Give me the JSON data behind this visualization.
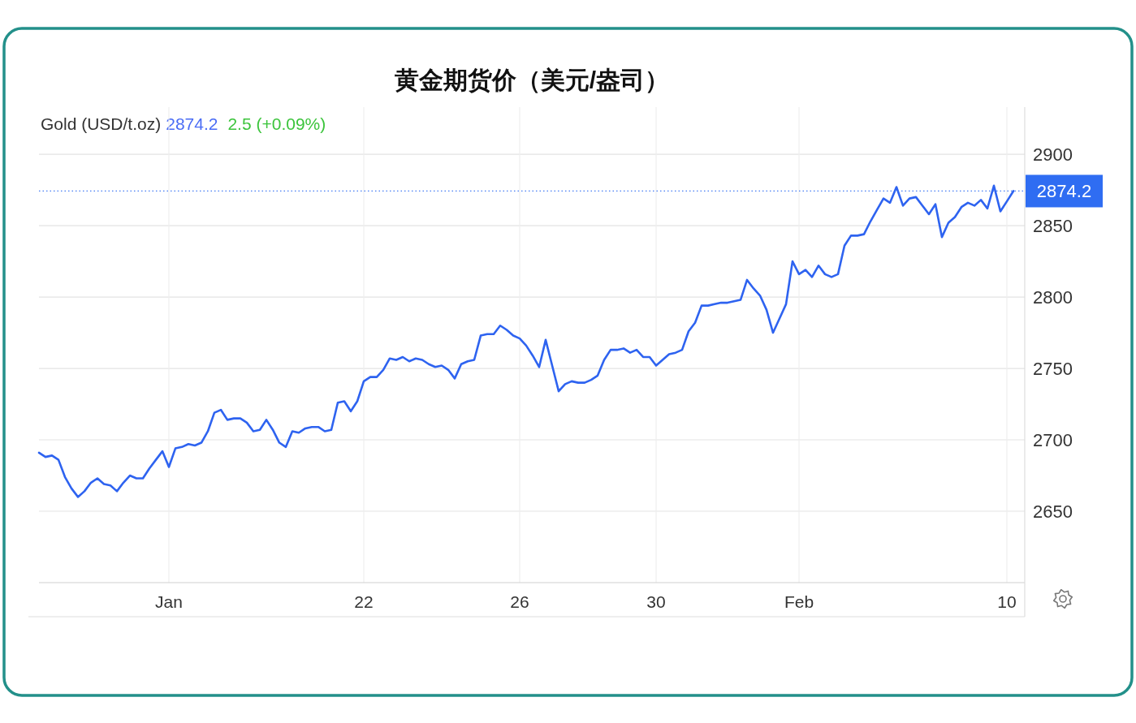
{
  "chart_data": {
    "type": "line",
    "title": "黄金期货价（美元/盎司）",
    "subtitle": "Gold (USD/t.oz)",
    "annotations": [
      "2874.2",
      "2.5 (+0.09%)"
    ],
    "categories": [
      null,
      null,
      null,
      null,
      null,
      null,
      null,
      null,
      null,
      null,
      null,
      null,
      null,
      null,
      null,
      null,
      null,
      null,
      null,
      null,
      "Jan",
      null,
      null,
      null,
      null,
      null,
      null,
      null,
      null,
      null,
      null,
      null,
      null,
      null,
      null,
      null,
      null,
      null,
      null,
      null,
      null,
      null,
      null,
      null,
      null,
      null,
      null,
      null,
      null,
      null,
      "22",
      null,
      null,
      null,
      null,
      null,
      null,
      null,
      null,
      null,
      null,
      null,
      null,
      null,
      null,
      null,
      null,
      null,
      null,
      null,
      null,
      null,
      null,
      null,
      "26",
      null,
      null,
      null,
      null,
      null,
      null,
      null,
      null,
      null,
      null,
      null,
      null,
      null,
      null,
      null,
      null,
      null,
      null,
      null,
      null,
      "30",
      null,
      null,
      null,
      null,
      null,
      null,
      null,
      null,
      null,
      null,
      null,
      null,
      null,
      null,
      null,
      null,
      null,
      null,
      null,
      null,
      null,
      "Feb",
      null,
      null,
      null,
      null,
      null,
      null,
      null,
      null,
      null,
      null,
      null,
      null,
      null,
      null,
      null,
      null,
      null,
      null,
      null,
      null,
      null,
      null,
      null,
      null,
      null,
      null,
      null,
      null,
      null,
      null,
      null,
      "10",
      null
    ],
    "values": [
      2691,
      2688,
      2689,
      2686,
      2674,
      2666,
      2660,
      2664,
      2670,
      2673,
      2669,
      2668,
      2664,
      2670,
      2675,
      2673,
      2673,
      2680,
      2686,
      2692,
      2681,
      2694,
      2695,
      2697,
      2696,
      2698,
      2706,
      2719,
      2721,
      2714,
      2715,
      2715,
      2712,
      2706,
      2707,
      2714,
      2707,
      2698,
      2695,
      2706,
      2705,
      2708,
      2709,
      2709,
      2706,
      2707,
      2726,
      2727,
      2720,
      2727,
      2741,
      2744,
      2744,
      2749,
      2757,
      2756,
      2758,
      2755,
      2757,
      2756,
      2753,
      2751,
      2752,
      2749,
      2743,
      2753,
      2755,
      2756,
      2773,
      2774,
      2774,
      2780,
      2777,
      2773,
      2771,
      2766,
      2759,
      2751,
      2770,
      2752,
      2734,
      2739,
      2741,
      2740,
      2740,
      2742,
      2745,
      2756,
      2763,
      2763,
      2764,
      2761,
      2763,
      2758,
      2758,
      2752,
      2756,
      2760,
      2761,
      2763,
      2776,
      2782,
      2794,
      2794,
      2795,
      2796,
      2796,
      2797,
      2798,
      2812,
      2806,
      2801,
      2791,
      2775,
      2785,
      2795,
      2825,
      2816,
      2819,
      2814,
      2822,
      2816,
      2814,
      2816,
      2836,
      2843,
      2843,
      2844,
      2853,
      2861,
      2869,
      2866,
      2877,
      2864,
      2869,
      2870,
      2864,
      2858,
      2865,
      2842,
      2852,
      2856,
      2863,
      2866,
      2864,
      2868,
      2862,
      2878,
      2860,
      2867,
      2874.2
    ],
    "color": "#2e63f0",
    "ylim": [
      2600,
      2933
    ],
    "yticks": [
      2650,
      2700,
      2750,
      2800,
      2850,
      2900
    ],
    "grid": true,
    "marker": "none",
    "line_style": "solid",
    "ref_lines": [
      {
        "axis": "y",
        "value": 2874.2,
        "label": "2874.2",
        "color": "#2f6df2",
        "line_style": "dotted"
      }
    ]
  }
}
